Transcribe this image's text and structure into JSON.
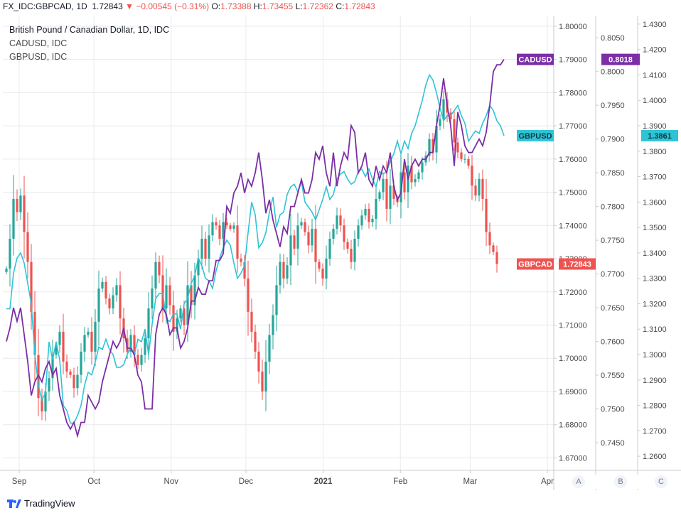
{
  "header": {
    "symbol": "FX_IDC:GBPCAD, 1D",
    "last": "1.72843",
    "change": "−0.00545 (−0.31%)",
    "open_label": "O:",
    "open": "1.73388",
    "high_label": "H:",
    "high": "1.73455",
    "low_label": "L:",
    "low": "1.72362",
    "close_label": "C:",
    "close": "1.72843"
  },
  "legend": {
    "main": "British Pound / Canadian Dollar, 1D, IDC",
    "s1": "CADUSD, IDC",
    "s2": "GBPUSD, IDC"
  },
  "footer": {
    "brand": "TradingView"
  },
  "scale_buttons": [
    "A",
    "B",
    "C"
  ],
  "chart_data": {
    "type": "line",
    "colors": {
      "up": "#26a69a",
      "down": "#ef5350",
      "cadusd": "#7b2ea6",
      "gbpusd": "#2ec4d6",
      "grid": "#e8eaee"
    },
    "x_labels": [
      {
        "label": "Sep",
        "date": "2020-09-01"
      },
      {
        "label": "Oct",
        "date": "2020-10-01"
      },
      {
        "label": "Nov",
        "date": "2020-11-01"
      },
      {
        "label": "Dec",
        "date": "2020-12-01"
      },
      {
        "label": "2021",
        "date": "2021-01-01"
      },
      {
        "label": "Feb",
        "date": "2021-02-01"
      },
      {
        "label": "Mar",
        "date": "2021-03-01"
      },
      {
        "label": "Apr",
        "date": "2021-04-01"
      }
    ],
    "axes": {
      "A": {
        "series": "GBPCAD",
        "range": [
          1.66624,
          1.80319
        ],
        "ticks": [
          "1.80000",
          "1.79000",
          "1.78000",
          "1.77000",
          "1.76000",
          "1.75000",
          "1.74000",
          "1.73000",
          "1.72000",
          "1.71000",
          "1.70000",
          "1.69000",
          "1.68000",
          "1.67000"
        ]
      },
      "B": {
        "series": "CADUSD",
        "range": [
          0.74089,
          0.80829
        ],
        "ticks": [
          "0.8050",
          "0.8000",
          "0.7950",
          "0.7900",
          "0.7850",
          "0.7800",
          "0.7750",
          "0.7700",
          "0.7650",
          "0.7600",
          "0.7550",
          "0.7500",
          "0.7450"
        ]
      },
      "C": {
        "series": "GBPUSD",
        "range": [
          1.25444,
          1.43333
        ],
        "ticks": [
          "1.4300",
          "1.4200",
          "1.4100",
          "1.4000",
          "1.3900",
          "1.3800",
          "1.3700",
          "1.3600",
          "1.3500",
          "1.3400",
          "1.3300",
          "1.3200",
          "1.3100",
          "1.3000",
          "1.2900",
          "1.2800",
          "1.2700",
          "1.2600"
        ]
      }
    },
    "last_labels": [
      {
        "name": "CADUSD",
        "value": "0.8018"
      },
      {
        "name": "GBPUSD",
        "value": "1.3861"
      },
      {
        "name": "GBPCAD",
        "value": "1.72843"
      }
    ],
    "gbpcad_close_start": 1.726,
    "gbpcad_close": [
      1.727,
      1.736,
      1.748,
      1.744,
      1.749,
      1.738,
      1.729,
      1.714,
      1.701,
      1.688,
      1.684,
      1.69,
      1.694,
      1.701,
      1.704,
      1.708,
      1.699,
      1.696,
      1.695,
      1.691,
      1.695,
      1.702,
      1.707,
      1.708,
      1.702,
      1.711,
      1.721,
      1.723,
      1.718,
      1.715,
      1.719,
      1.722,
      1.712,
      1.706,
      1.702,
      1.707,
      1.701,
      1.698,
      1.701,
      1.706,
      1.715,
      1.721,
      1.729,
      1.725,
      1.715,
      1.722,
      1.716,
      1.708,
      1.712,
      1.715,
      1.71,
      1.722,
      1.716,
      1.725,
      1.73,
      1.736,
      1.73,
      1.737,
      1.741,
      1.74,
      1.736,
      1.741,
      1.74,
      1.739,
      1.74,
      1.73,
      1.729,
      1.724,
      1.714,
      1.708,
      1.702,
      1.696,
      1.69,
      1.699,
      1.707,
      1.713,
      1.722,
      1.729,
      1.724,
      1.728,
      1.737,
      1.733,
      1.74,
      1.741,
      1.738,
      1.734,
      1.739,
      1.729,
      1.727,
      1.724,
      1.73,
      1.736,
      1.739,
      1.743,
      1.74,
      1.735,
      1.733,
      1.729,
      1.736,
      1.74,
      1.743,
      1.745,
      1.741,
      1.742,
      1.748,
      1.75,
      1.754,
      1.745,
      1.752,
      1.748,
      1.747,
      1.756,
      1.75,
      1.758,
      1.753,
      1.754,
      1.756,
      1.759,
      1.761,
      1.766,
      1.762,
      1.77,
      1.772,
      1.778,
      1.774,
      1.772,
      1.765,
      1.762,
      1.76,
      1.76,
      1.758,
      1.752,
      1.749,
      1.754,
      1.748,
      1.738,
      1.734,
      1.732,
      1.7284
    ],
    "cadusd": [
      0.76,
      0.762,
      0.765,
      0.763,
      0.765,
      0.761,
      0.757,
      0.752,
      0.754,
      0.755,
      0.754,
      0.756,
      0.757,
      0.755,
      0.756,
      0.752,
      0.75,
      0.748,
      0.747,
      0.748,
      0.746,
      0.748,
      0.748,
      0.752,
      0.751,
      0.75,
      0.751,
      0.754,
      0.756,
      0.758,
      0.76,
      0.759,
      0.76,
      0.762,
      0.759,
      0.759,
      0.758,
      0.755,
      0.754,
      0.75,
      0.75,
      0.75,
      0.761,
      0.764,
      0.765,
      0.764,
      0.761,
      0.762,
      0.762,
      0.759,
      0.76,
      0.762,
      0.766,
      0.766,
      0.768,
      0.767,
      0.767,
      0.769,
      0.769,
      0.772,
      0.772,
      0.773,
      0.78,
      0.779,
      0.782,
      0.783,
      0.785,
      0.782,
      0.784,
      0.783,
      0.785,
      0.788,
      0.784,
      0.779,
      0.781,
      0.778,
      0.776,
      0.774,
      0.777,
      0.776,
      0.78,
      0.78,
      0.782,
      0.784,
      0.782,
      0.782,
      0.784,
      0.788,
      0.787,
      0.789,
      0.785,
      0.783,
      0.788,
      0.783,
      0.786,
      0.788,
      0.787,
      0.792,
      0.791,
      0.785,
      0.786,
      0.788,
      0.784,
      0.783,
      0.786,
      0.784,
      0.786,
      0.785,
      0.788,
      0.783,
      0.781,
      0.782,
      0.787,
      0.784,
      0.786,
      0.787,
      0.786,
      0.787,
      0.787,
      0.788,
      0.788,
      0.792,
      0.795,
      0.799,
      0.795,
      0.792,
      0.786,
      0.794,
      0.792,
      0.789,
      0.788,
      0.788,
      0.789,
      0.79,
      0.789,
      0.791,
      0.795,
      0.8,
      0.801,
      0.801,
      0.8018
    ],
    "gbpusd": [
      1.318,
      1.318,
      1.332,
      1.338,
      1.34,
      1.336,
      1.328,
      1.32,
      1.3,
      1.288,
      1.282,
      1.285,
      1.305,
      1.298,
      1.305,
      1.298,
      1.28,
      1.278,
      1.273,
      1.273,
      1.276,
      1.28,
      1.288,
      1.293,
      1.292,
      1.297,
      1.303,
      1.302,
      1.306,
      1.302,
      1.3,
      1.295,
      1.295,
      1.296,
      1.3,
      1.303,
      1.3,
      1.306,
      1.305,
      1.31,
      1.3,
      1.312,
      1.322,
      1.324,
      1.324,
      1.314,
      1.313,
      1.316,
      1.316,
      1.31,
      1.32,
      1.322,
      1.328,
      1.331,
      1.338,
      1.335,
      1.33,
      1.329,
      1.326,
      1.333,
      1.338,
      1.342,
      1.345,
      1.343,
      1.336,
      1.33,
      1.332,
      1.335,
      1.348,
      1.36,
      1.355,
      1.342,
      1.344,
      1.348,
      1.356,
      1.362,
      1.35,
      1.355,
      1.356,
      1.363,
      1.366,
      1.367,
      1.364,
      1.368,
      1.36,
      1.358,
      1.356,
      1.353,
      1.357,
      1.361,
      1.366,
      1.361,
      1.363,
      1.369,
      1.371,
      1.372,
      1.369,
      1.367,
      1.368,
      1.372,
      1.373,
      1.37,
      1.373,
      1.369,
      1.366,
      1.372,
      1.371,
      1.372,
      1.376,
      1.379,
      1.384,
      1.379,
      1.384,
      1.381,
      1.387,
      1.39,
      1.395,
      1.4,
      1.406,
      1.41,
      1.408,
      1.403,
      1.397,
      1.392,
      1.394,
      1.394,
      1.396,
      1.398,
      1.394,
      1.391,
      1.384,
      1.386,
      1.388,
      1.387,
      1.391,
      1.394,
      1.398,
      1.396,
      1.392,
      1.39,
      1.3861
    ]
  }
}
